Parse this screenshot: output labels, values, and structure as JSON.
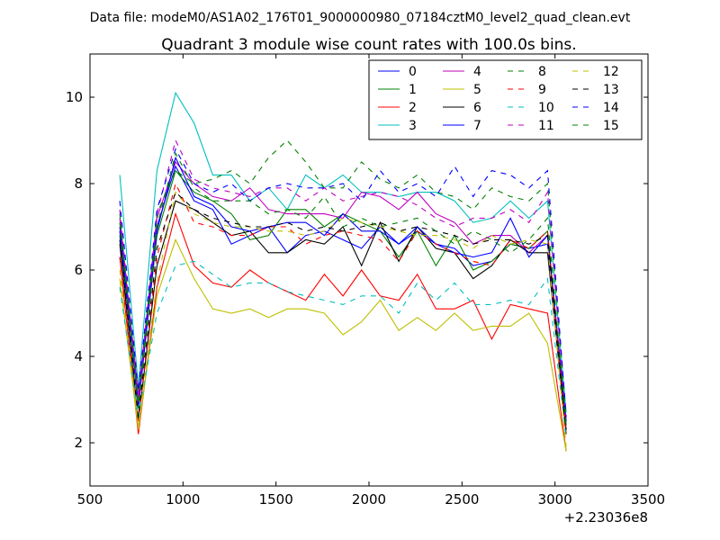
{
  "suptitle": "Data file: modeM0/AS1A02_176T01_9000000980_07184cztM0_level2_quad_clean.evt",
  "chart_data": {
    "type": "line",
    "title": "Quadrant 3 module wise count rates with 100.0s bins.",
    "xlabel": "",
    "ylabel": "",
    "x_offset_label": "+2.23036e8",
    "xlim": [
      500,
      3500
    ],
    "ylim": [
      1,
      11
    ],
    "xticks": [
      500,
      1000,
      1500,
      2000,
      2500,
      3000,
      3500
    ],
    "yticks": [
      2,
      4,
      6,
      8,
      10
    ],
    "grid": false,
    "legend_position": "top-right",
    "legend_columns": 4,
    "x": [
      660,
      760,
      860,
      960,
      1060,
      1160,
      1260,
      1360,
      1460,
      1560,
      1660,
      1760,
      1860,
      1960,
      2060,
      2160,
      2260,
      2360,
      2460,
      2560,
      2660,
      2760,
      2860,
      2960,
      3060
    ],
    "series": [
      {
        "name": "0",
        "color": "#0000ff",
        "dash": "solid",
        "values": [
          7.0,
          3.0,
          7.0,
          8.4,
          7.6,
          7.4,
          6.6,
          6.8,
          7.0,
          6.4,
          6.8,
          6.9,
          6.7,
          6.5,
          7.0,
          6.6,
          6.9,
          6.6,
          6.5,
          6.1,
          6.2,
          6.6,
          6.5,
          6.6,
          2.5
        ]
      },
      {
        "name": "1",
        "color": "#008000",
        "dash": "solid",
        "values": [
          6.8,
          2.9,
          6.8,
          8.3,
          7.8,
          7.6,
          7.3,
          6.7,
          6.8,
          7.4,
          7.4,
          7.0,
          7.3,
          7.1,
          6.9,
          6.3,
          6.9,
          6.1,
          6.8,
          6.0,
          6.2,
          6.6,
          6.5,
          6.9,
          2.4
        ]
      },
      {
        "name": "2",
        "color": "#ff0000",
        "dash": "solid",
        "values": [
          6.3,
          2.2,
          5.6,
          7.3,
          6.1,
          5.7,
          5.6,
          6.0,
          5.7,
          5.5,
          5.3,
          5.9,
          5.4,
          6.0,
          5.4,
          5.3,
          5.9,
          5.1,
          5.1,
          5.3,
          4.4,
          5.2,
          5.1,
          5.0,
          1.8
        ]
      },
      {
        "name": "3",
        "color": "#00bfbf",
        "dash": "solid",
        "values": [
          8.2,
          3.3,
          8.3,
          10.1,
          9.4,
          8.2,
          8.2,
          7.6,
          7.9,
          7.4,
          8.2,
          7.9,
          8.2,
          7.8,
          7.8,
          7.7,
          7.8,
          7.8,
          7.6,
          7.1,
          7.2,
          7.6,
          7.2,
          7.6,
          2.7
        ]
      },
      {
        "name": "4",
        "color": "#bf00bf",
        "dash": "solid",
        "values": [
          7.2,
          3.1,
          7.2,
          8.5,
          8.0,
          7.7,
          7.6,
          7.9,
          7.4,
          7.3,
          7.3,
          7.3,
          7.2,
          7.8,
          7.7,
          7.4,
          7.8,
          7.3,
          7.1,
          6.6,
          6.8,
          6.8,
          6.4,
          6.8,
          2.3
        ]
      },
      {
        "name": "5",
        "color": "#bfbf00",
        "dash": "solid",
        "values": [
          5.8,
          2.3,
          5.4,
          6.7,
          5.8,
          5.1,
          5.0,
          5.1,
          4.9,
          5.1,
          5.1,
          5.0,
          4.5,
          4.8,
          5.3,
          4.6,
          4.9,
          4.6,
          5.0,
          4.6,
          4.7,
          4.7,
          5.0,
          4.3,
          1.8
        ]
      },
      {
        "name": "6",
        "color": "#000000",
        "dash": "solid",
        "values": [
          6.6,
          2.5,
          6.1,
          7.6,
          7.4,
          7.1,
          6.8,
          6.9,
          6.4,
          6.4,
          6.7,
          6.6,
          7.0,
          6.1,
          7.1,
          6.2,
          7.0,
          6.5,
          6.4,
          5.8,
          6.1,
          6.7,
          6.4,
          6.4,
          2.2
        ]
      },
      {
        "name": "7",
        "color": "#0000ff",
        "dash": "solid",
        "values": [
          6.9,
          2.8,
          6.9,
          8.6,
          7.7,
          7.5,
          7.0,
          6.9,
          7.0,
          7.1,
          7.1,
          6.8,
          7.3,
          6.9,
          6.9,
          6.6,
          7.0,
          6.6,
          6.4,
          6.3,
          6.4,
          7.2,
          6.3,
          6.8,
          2.5
        ]
      },
      {
        "name": "8",
        "color": "#008000",
        "dash": "dashed",
        "values": [
          7.3,
          2.9,
          7.3,
          8.3,
          8.0,
          8.1,
          8.3,
          8.0,
          8.6,
          9.0,
          8.5,
          7.9,
          7.9,
          8.5,
          8.1,
          7.9,
          8.2,
          7.8,
          7.7,
          7.4,
          7.9,
          7.7,
          7.6,
          8.0,
          2.6
        ]
      },
      {
        "name": "9",
        "color": "#ff0000",
        "dash": "dashed",
        "values": [
          6.3,
          2.5,
          6.3,
          8.0,
          7.1,
          7.0,
          6.8,
          6.8,
          7.0,
          7.0,
          6.6,
          6.8,
          6.9,
          6.8,
          6.7,
          6.2,
          6.9,
          6.6,
          6.4,
          6.2,
          6.1,
          6.7,
          6.5,
          6.9,
          2.2
        ]
      },
      {
        "name": "10",
        "color": "#00bfbf",
        "dash": "dashed",
        "values": [
          5.6,
          2.6,
          5.0,
          6.1,
          6.2,
          5.9,
          5.6,
          5.7,
          5.7,
          5.5,
          5.4,
          5.3,
          5.2,
          5.4,
          5.4,
          5.0,
          5.7,
          5.3,
          5.7,
          5.2,
          5.2,
          5.3,
          5.2,
          5.8,
          2.1
        ]
      },
      {
        "name": "11",
        "color": "#bf00bf",
        "dash": "dashed",
        "values": [
          7.4,
          3.0,
          7.3,
          9.0,
          8.1,
          7.9,
          7.8,
          7.7,
          7.9,
          7.9,
          7.6,
          7.9,
          7.6,
          7.7,
          7.8,
          7.7,
          7.5,
          7.2,
          7.0,
          7.2,
          7.2,
          7.4,
          7.1,
          7.8,
          2.5
        ]
      },
      {
        "name": "12",
        "color": "#bfbf00",
        "dash": "dashed",
        "values": [
          6.0,
          2.4,
          5.7,
          7.8,
          7.3,
          7.1,
          7.0,
          7.0,
          6.9,
          6.9,
          6.8,
          6.9,
          7.2,
          7.1,
          7.0,
          6.9,
          6.8,
          6.8,
          6.7,
          6.5,
          6.8,
          6.6,
          6.7,
          6.6,
          1.9
        ]
      },
      {
        "name": "13",
        "color": "#000000",
        "dash": "dashed",
        "values": [
          6.7,
          2.6,
          6.5,
          7.8,
          7.4,
          7.2,
          7.1,
          7.0,
          7.0,
          7.1,
          6.9,
          7.0,
          6.9,
          7.0,
          7.1,
          6.9,
          7.0,
          6.9,
          6.8,
          6.6,
          6.7,
          6.7,
          6.6,
          6.8,
          2.3
        ]
      },
      {
        "name": "14",
        "color": "#0000ff",
        "dash": "dashed",
        "values": [
          7.6,
          3.2,
          7.4,
          8.8,
          8.0,
          7.8,
          8.0,
          7.6,
          7.9,
          8.0,
          7.9,
          7.9,
          8.0,
          7.6,
          8.3,
          7.8,
          8.0,
          7.7,
          8.4,
          7.7,
          8.3,
          8.2,
          7.9,
          8.3,
          2.6
        ]
      },
      {
        "name": "15",
        "color": "#008000",
        "dash": "dashed",
        "values": [
          7.1,
          2.8,
          7.0,
          8.7,
          7.9,
          7.6,
          7.6,
          7.6,
          7.3,
          7.4,
          7.2,
          7.7,
          7.0,
          7.2,
          7.0,
          7.1,
          7.2,
          6.9,
          6.6,
          6.9,
          6.7,
          6.4,
          6.7,
          7.2,
          2.4
        ]
      }
    ]
  }
}
